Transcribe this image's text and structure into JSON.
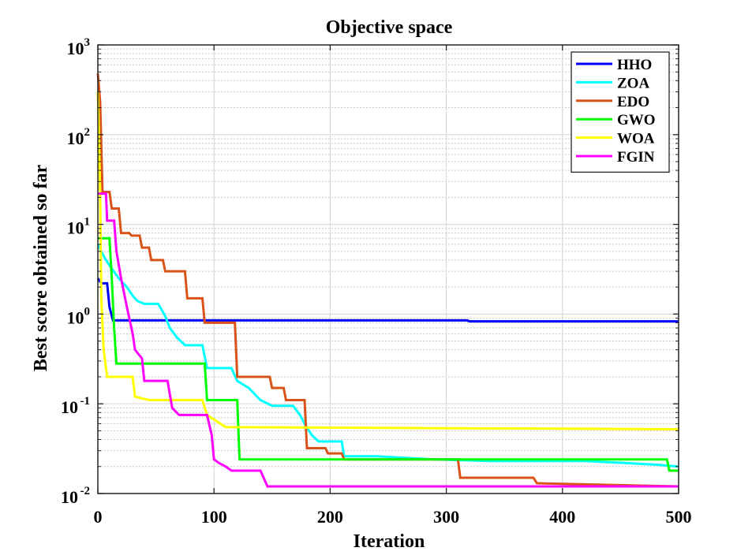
{
  "chart_data": {
    "type": "line",
    "title": "Objective space",
    "xlabel": "Iteration",
    "ylabel": "Best score obtained so far",
    "xlim": [
      0,
      500
    ],
    "ylim": [
      0.01,
      1000
    ],
    "yscale": "log",
    "grid": true,
    "minor_grid": true,
    "legend_position": "top-right",
    "x_ticks": [
      "0",
      "100",
      "200",
      "300",
      "400",
      "500"
    ],
    "y_ticks": [
      {
        "base": "10",
        "exp": "-2",
        "value": 0.01
      },
      {
        "base": "10",
        "exp": "-1",
        "value": 0.1
      },
      {
        "base": "10",
        "exp": "0",
        "value": 1
      },
      {
        "base": "10",
        "exp": "1",
        "value": 10
      },
      {
        "base": "10",
        "exp": "2",
        "value": 100
      },
      {
        "base": "10",
        "exp": "3",
        "value": 1000
      }
    ],
    "series": [
      {
        "name": "HHO",
        "color": "#0000ff",
        "points": [
          [
            0,
            2.5
          ],
          [
            3,
            2.2
          ],
          [
            8,
            2.2
          ],
          [
            10,
            1.2
          ],
          [
            13,
            0.85
          ],
          [
            318,
            0.85
          ],
          [
            320,
            0.83
          ],
          [
            500,
            0.83
          ]
        ]
      },
      {
        "name": "ZOA",
        "color": "#00ffff",
        "points": [
          [
            0,
            6
          ],
          [
            3,
            5
          ],
          [
            6,
            4.2
          ],
          [
            10,
            3.5
          ],
          [
            18,
            2.5
          ],
          [
            25,
            2.0
          ],
          [
            30,
            1.6
          ],
          [
            34,
            1.4
          ],
          [
            40,
            1.3
          ],
          [
            52,
            1.3
          ],
          [
            58,
            0.95
          ],
          [
            62,
            0.7
          ],
          [
            68,
            0.55
          ],
          [
            75,
            0.45
          ],
          [
            90,
            0.45
          ],
          [
            94,
            0.25
          ],
          [
            115,
            0.25
          ],
          [
            120,
            0.18
          ],
          [
            130,
            0.15
          ],
          [
            140,
            0.11
          ],
          [
            150,
            0.095
          ],
          [
            168,
            0.095
          ],
          [
            174,
            0.075
          ],
          [
            178,
            0.06
          ],
          [
            184,
            0.045
          ],
          [
            190,
            0.038
          ],
          [
            210,
            0.038
          ],
          [
            212,
            0.026
          ],
          [
            240,
            0.026
          ],
          [
            265,
            0.025
          ],
          [
            290,
            0.024
          ],
          [
            340,
            0.023
          ],
          [
            420,
            0.023
          ],
          [
            450,
            0.022
          ],
          [
            480,
            0.021
          ],
          [
            500,
            0.02
          ]
        ]
      },
      {
        "name": "EDO",
        "color": "#d95319",
        "points": [
          [
            0,
            480
          ],
          [
            2,
            230
          ],
          [
            4,
            23
          ],
          [
            10,
            23
          ],
          [
            12,
            15
          ],
          [
            18,
            15
          ],
          [
            20,
            8
          ],
          [
            27,
            8
          ],
          [
            29,
            7.5
          ],
          [
            36,
            7.5
          ],
          [
            38,
            5.5
          ],
          [
            44,
            5.5
          ],
          [
            46,
            4
          ],
          [
            56,
            4
          ],
          [
            58,
            3
          ],
          [
            75,
            3
          ],
          [
            77,
            1.5
          ],
          [
            90,
            1.5
          ],
          [
            92,
            0.8
          ],
          [
            118,
            0.8
          ],
          [
            120,
            0.2
          ],
          [
            148,
            0.2
          ],
          [
            150,
            0.15
          ],
          [
            160,
            0.15
          ],
          [
            162,
            0.11
          ],
          [
            178,
            0.11
          ],
          [
            180,
            0.032
          ],
          [
            196,
            0.032
          ],
          [
            198,
            0.028
          ],
          [
            210,
            0.028
          ],
          [
            212,
            0.024
          ],
          [
            310,
            0.024
          ],
          [
            312,
            0.015
          ],
          [
            375,
            0.015
          ],
          [
            378,
            0.013
          ],
          [
            500,
            0.012
          ]
        ]
      },
      {
        "name": "GWO",
        "color": "#00ff00",
        "points": [
          [
            0,
            7
          ],
          [
            10,
            7
          ],
          [
            12,
            2.5
          ],
          [
            14,
            0.7
          ],
          [
            16,
            0.28
          ],
          [
            20,
            0.28
          ],
          [
            92,
            0.28
          ],
          [
            94,
            0.11
          ],
          [
            120,
            0.11
          ],
          [
            122,
            0.024
          ],
          [
            490,
            0.024
          ],
          [
            492,
            0.018
          ],
          [
            500,
            0.018
          ]
        ]
      },
      {
        "name": "WOA",
        "color": "#ffff00",
        "points": [
          [
            0,
            300
          ],
          [
            1,
            90
          ],
          [
            2,
            20
          ],
          [
            3,
            1.5
          ],
          [
            5,
            0.4
          ],
          [
            8,
            0.2
          ],
          [
            30,
            0.2
          ],
          [
            32,
            0.12
          ],
          [
            44,
            0.11
          ],
          [
            90,
            0.11
          ],
          [
            94,
            0.075
          ],
          [
            110,
            0.055
          ],
          [
            500,
            0.052
          ]
        ]
      },
      {
        "name": "FGIN",
        "color": "#ff00ff",
        "points": [
          [
            0,
            22
          ],
          [
            7,
            22
          ],
          [
            8,
            11
          ],
          [
            14,
            11
          ],
          [
            16,
            5
          ],
          [
            20,
            2.5
          ],
          [
            25,
            1.2
          ],
          [
            30,
            0.6
          ],
          [
            32,
            0.4
          ],
          [
            38,
            0.32
          ],
          [
            40,
            0.18
          ],
          [
            60,
            0.18
          ],
          [
            64,
            0.09
          ],
          [
            70,
            0.075
          ],
          [
            94,
            0.075
          ],
          [
            98,
            0.045
          ],
          [
            100,
            0.024
          ],
          [
            104,
            0.022
          ],
          [
            110,
            0.02
          ],
          [
            115,
            0.018
          ],
          [
            140,
            0.018
          ],
          [
            146,
            0.012
          ],
          [
            200,
            0.012
          ],
          [
            500,
            0.012
          ]
        ]
      }
    ]
  }
}
